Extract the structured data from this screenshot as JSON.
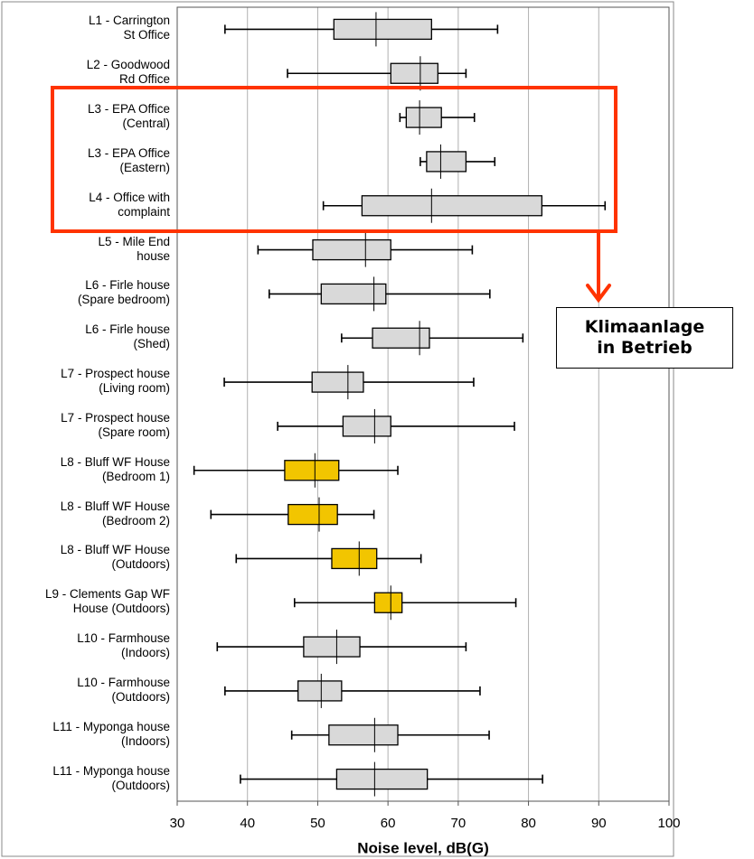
{
  "chart_data": {
    "type": "boxplot",
    "orientation": "horizontal",
    "xlabel": "Noise level, dB(G)",
    "xlim": [
      30,
      100
    ],
    "xticks": [
      30,
      40,
      50,
      60,
      70,
      80,
      90,
      100
    ],
    "grid": true,
    "categories": [
      "L1 - Carrington\nSt Office",
      "L2 - Goodwood\nRd Office",
      "L3 - EPA Office\n(Central)",
      "L3 - EPA Office\n(Eastern)",
      "L4 - Office with\ncomplaint",
      "L5 - Mile End\nhouse",
      "L6 - Firle house\n(Spare bedroom)",
      "L6 - Firle house\n(Shed)",
      "L7 - Prospect house\n(Living room)",
      "L7 - Prospect house\n(Spare room)",
      "L8 - Bluff WF House\n(Bedroom 1)",
      "L8 - Bluff WF House\n(Bedroom 2)",
      "L8 - Bluff WF House\n(Outdoors)",
      "L9 - Clements Gap WF\nHouse (Outdoors)",
      "L10 - Farmhouse\n(Indoors)",
      "L10 - Farmhouse\n(Outdoors)",
      "L11 - Myponga house\n(Indoors)",
      "L11 - Myponga house\n(Outdoors)"
    ],
    "boxes": [
      {
        "whislo": 36.8,
        "q1": 52.3,
        "med": 58.3,
        "q3": 66.2,
        "whishi": 75.6,
        "color": "#d9d9d9"
      },
      {
        "whislo": 45.7,
        "q1": 60.4,
        "med": 64.6,
        "q3": 67.1,
        "whishi": 71.1,
        "color": "#d9d9d9"
      },
      {
        "whislo": 61.7,
        "q1": 62.6,
        "med": 64.5,
        "q3": 67.6,
        "whishi": 72.3,
        "color": "#d9d9d9"
      },
      {
        "whislo": 64.6,
        "q1": 65.5,
        "med": 67.5,
        "q3": 71.1,
        "whishi": 75.2,
        "color": "#d9d9d9"
      },
      {
        "whislo": 50.8,
        "q1": 56.3,
        "med": 66.2,
        "q3": 81.9,
        "whishi": 90.9,
        "color": "#d9d9d9"
      },
      {
        "whislo": 41.5,
        "q1": 49.3,
        "med": 56.8,
        "q3": 60.4,
        "whishi": 72.0,
        "color": "#d9d9d9"
      },
      {
        "whislo": 43.1,
        "q1": 50.5,
        "med": 58.0,
        "q3": 59.7,
        "whishi": 74.5,
        "color": "#d9d9d9"
      },
      {
        "whislo": 53.4,
        "q1": 57.8,
        "med": 64.5,
        "q3": 65.9,
        "whishi": 79.2,
        "color": "#d9d9d9"
      },
      {
        "whislo": 36.7,
        "q1": 49.2,
        "med": 54.3,
        "q3": 56.5,
        "whishi": 72.2,
        "color": "#d9d9d9"
      },
      {
        "whislo": 44.3,
        "q1": 53.6,
        "med": 58.1,
        "q3": 60.4,
        "whishi": 78.0,
        "color": "#d9d9d9"
      },
      {
        "whislo": 32.4,
        "q1": 45.3,
        "med": 49.6,
        "q3": 53.0,
        "whishi": 61.4,
        "color": "#f2c500"
      },
      {
        "whislo": 34.8,
        "q1": 45.8,
        "med": 50.2,
        "q3": 52.8,
        "whishi": 58.0,
        "color": "#f2c500"
      },
      {
        "whislo": 38.4,
        "q1": 52.0,
        "med": 55.9,
        "q3": 58.4,
        "whishi": 64.7,
        "color": "#f2c500"
      },
      {
        "whislo": 46.7,
        "q1": 58.1,
        "med": 60.4,
        "q3": 62.0,
        "whishi": 78.2,
        "color": "#f2c500"
      },
      {
        "whislo": 35.7,
        "q1": 48.0,
        "med": 52.7,
        "q3": 56.0,
        "whishi": 71.1,
        "color": "#d9d9d9"
      },
      {
        "whislo": 36.8,
        "q1": 47.2,
        "med": 50.5,
        "q3": 53.4,
        "whishi": 73.1,
        "color": "#d9d9d9"
      },
      {
        "whislo": 46.3,
        "q1": 51.6,
        "med": 58.1,
        "q3": 61.4,
        "whishi": 74.4,
        "color": "#d9d9d9"
      },
      {
        "whislo": 39.0,
        "q1": 52.7,
        "med": 58.1,
        "q3": 65.6,
        "whishi": 82.0,
        "color": "#d9d9d9"
      }
    ],
    "annotation": {
      "text": "Klimaanlage in Betrieb",
      "color": "#ff3300"
    }
  }
}
